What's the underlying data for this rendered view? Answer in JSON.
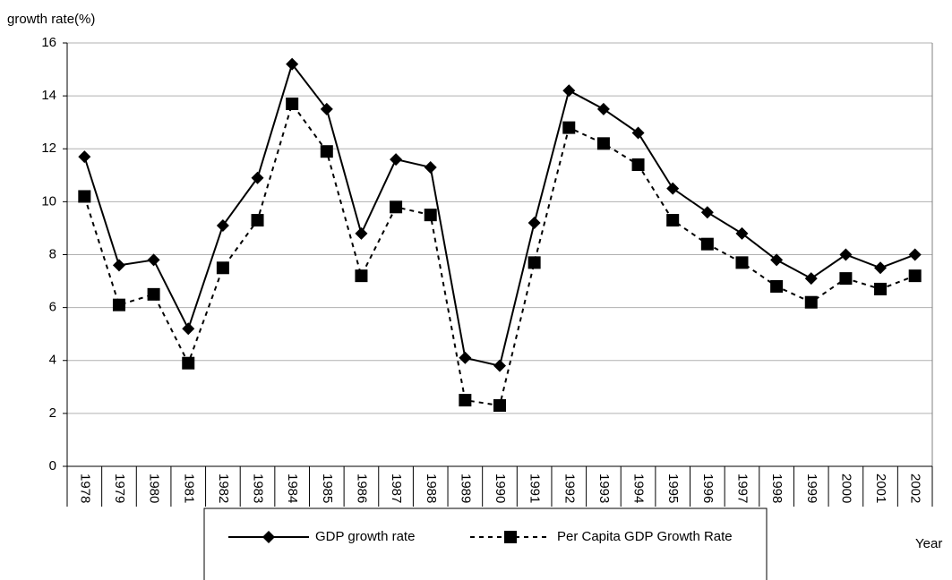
{
  "chart_data": {
    "type": "line",
    "y_label": "growth rate(%)",
    "x_label": "Year",
    "categories": [
      "1978",
      "1979",
      "1980",
      "1981",
      "1982",
      "1983",
      "1984",
      "1985",
      "1986",
      "1987",
      "1988",
      "1989",
      "1990",
      "1991",
      "1992",
      "1993",
      "1994",
      "1995",
      "1996",
      "1997",
      "1998",
      "1999",
      "2000",
      "2001",
      "2002"
    ],
    "series": [
      {
        "name": "GDP growth rate",
        "color": "#000000",
        "line_style": "solid",
        "marker": "diamond",
        "values": [
          11.7,
          7.6,
          7.8,
          5.2,
          9.1,
          10.9,
          15.2,
          13.5,
          8.8,
          11.6,
          11.3,
          4.1,
          3.8,
          9.2,
          14.2,
          13.5,
          12.6,
          10.5,
          9.6,
          8.8,
          7.8,
          7.1,
          8.0,
          7.5,
          8.0
        ]
      },
      {
        "name": "Per Capita GDP Growth Rate",
        "color": "#000000",
        "line_style": "dashed",
        "marker": "square",
        "values": [
          10.2,
          6.1,
          6.5,
          3.9,
          7.5,
          9.3,
          13.7,
          11.9,
          7.2,
          9.8,
          9.5,
          2.5,
          2.3,
          7.7,
          12.8,
          12.2,
          11.4,
          9.3,
          8.4,
          7.7,
          6.8,
          6.2,
          7.1,
          6.7,
          7.2
        ]
      }
    ],
    "ylim": [
      0,
      16
    ],
    "yticks": [
      0,
      2,
      4,
      6,
      8,
      10,
      12,
      14,
      16
    ],
    "grid": true
  }
}
